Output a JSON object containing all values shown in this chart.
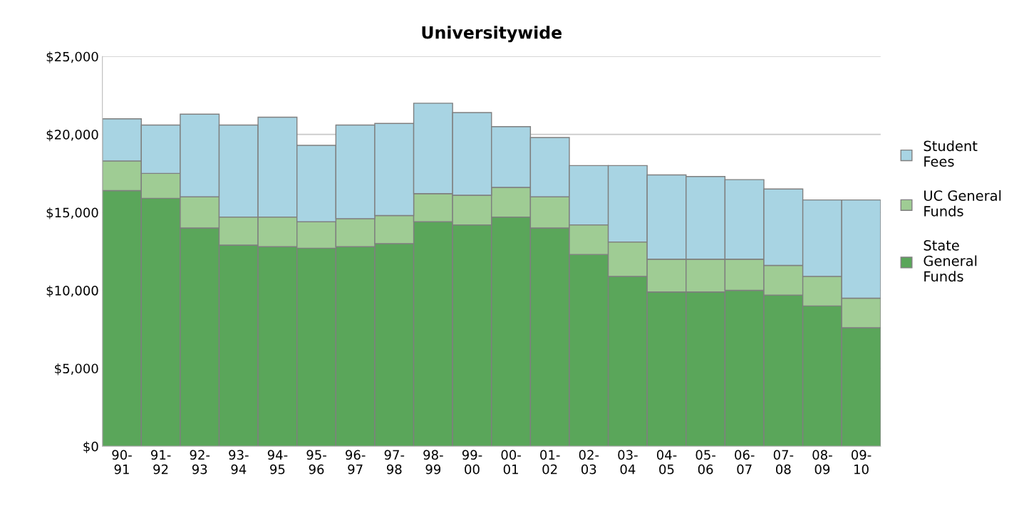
{
  "chart_data": {
    "type": "bar",
    "title": "Universitywide",
    "stacked": true,
    "grid": "y",
    "legend": "right",
    "categories": [
      "90-\n91",
      "91-\n92",
      "92-\n93",
      "93-\n94",
      "94-\n95",
      "95-\n96",
      "96-\n97",
      "97-\n98",
      "98-\n99",
      "99-\n00",
      "00-\n01",
      "01-\n02",
      "02-\n03",
      "03-\n04",
      "04-\n05",
      "05-\n06",
      "06-\n07",
      "07-\n08",
      "08-\n09",
      "09-\n10"
    ],
    "ylim": [
      0,
      25000
    ],
    "yticks": [
      {
        "value": 0,
        "label": "$0"
      },
      {
        "value": 5000,
        "label": "$5,000"
      },
      {
        "value": 10000,
        "label": "$10,000"
      },
      {
        "value": 15000,
        "label": "$15,000"
      },
      {
        "value": 20000,
        "label": "$20,000"
      },
      {
        "value": 25000,
        "label": "$25,000"
      }
    ],
    "series": [
      {
        "name": "State\nGeneral\nFunds",
        "color": "#5aa65a",
        "values": [
          16400,
          15900,
          14000,
          12900,
          12800,
          12700,
          12800,
          13000,
          14400,
          14200,
          14700,
          14000,
          12300,
          10900,
          9900,
          9900,
          10000,
          9700,
          9000,
          7600
        ]
      },
      {
        "name": "UC General\nFunds",
        "color": "#9fcc94",
        "values": [
          1900,
          1600,
          2000,
          1800,
          1900,
          1700,
          1800,
          1800,
          1800,
          1900,
          1900,
          2000,
          1900,
          2200,
          2100,
          2100,
          2000,
          1900,
          1900,
          1900
        ]
      },
      {
        "name": "Student\nFees",
        "color": "#a8d4e3",
        "values": [
          2700,
          3100,
          5300,
          5900,
          6400,
          4900,
          6000,
          5900,
          5800,
          5300,
          3900,
          3800,
          3800,
          4900,
          5400,
          5300,
          5100,
          4900,
          4900,
          6300
        ]
      }
    ]
  }
}
